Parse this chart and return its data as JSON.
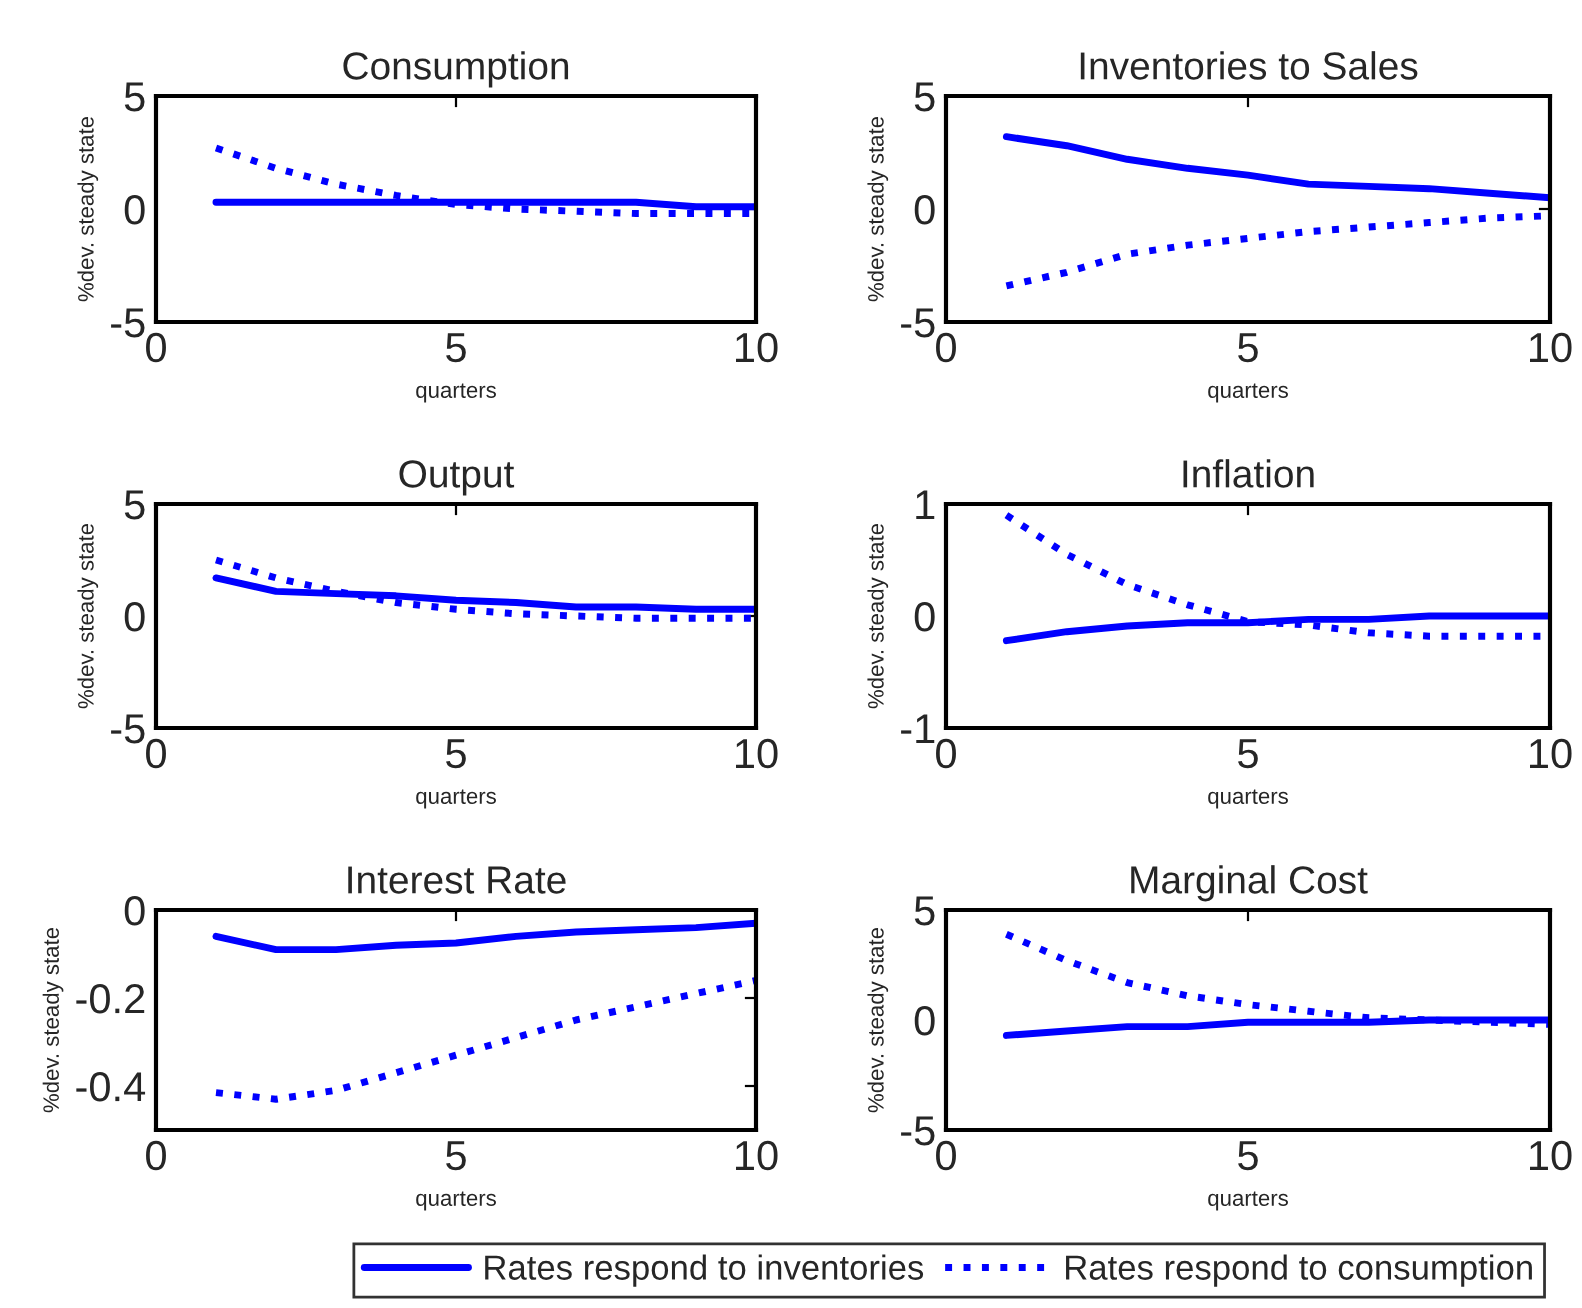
{
  "chart_data": [
    {
      "type": "line",
      "title": "Consumption",
      "xlabel": "quarters",
      "ylabel": "%dev. steady state",
      "xlim": [
        0,
        10
      ],
      "xticks": [
        0,
        5,
        10
      ],
      "ylim": [
        -5,
        5
      ],
      "yticks": [
        -5,
        0,
        5
      ],
      "grid": false,
      "x": [
        1,
        2,
        3,
        4,
        5,
        6,
        7,
        8,
        9,
        10
      ],
      "series": [
        {
          "color": "#0000ff",
          "line_style": "solid",
          "values": [
            0.3,
            0.3,
            0.3,
            0.3,
            0.3,
            0.3,
            0.3,
            0.3,
            0.1,
            0.1
          ]
        },
        {
          "color": "#0000ff",
          "line_style": "dotted",
          "values": [
            2.7,
            1.8,
            1.1,
            0.6,
            0.2,
            0.0,
            -0.1,
            -0.2,
            -0.2,
            -0.2
          ]
        }
      ]
    },
    {
      "type": "line",
      "title": "Inventories to Sales",
      "xlabel": "quarters",
      "ylabel": "%dev. steady state",
      "xlim": [
        0,
        10
      ],
      "xticks": [
        0,
        5,
        10
      ],
      "ylim": [
        -5,
        5
      ],
      "yticks": [
        -5,
        0,
        5
      ],
      "grid": false,
      "x": [
        1,
        2,
        3,
        4,
        5,
        6,
        7,
        8,
        9,
        10
      ],
      "series": [
        {
          "color": "#0000ff",
          "line_style": "solid",
          "values": [
            3.2,
            2.8,
            2.2,
            1.8,
            1.5,
            1.1,
            1.0,
            0.9,
            0.7,
            0.5
          ]
        },
        {
          "color": "#0000ff",
          "line_style": "dotted",
          "values": [
            -3.4,
            -2.8,
            -2.0,
            -1.6,
            -1.3,
            -1.0,
            -0.8,
            -0.6,
            -0.4,
            -0.3
          ]
        }
      ]
    },
    {
      "type": "line",
      "title": "Output",
      "xlabel": "quarters",
      "ylabel": "%dev. steady state",
      "xlim": [
        0,
        10
      ],
      "xticks": [
        0,
        5,
        10
      ],
      "ylim": [
        -5,
        5
      ],
      "yticks": [
        -5,
        0,
        5
      ],
      "grid": false,
      "x": [
        1,
        2,
        3,
        4,
        5,
        6,
        7,
        8,
        9,
        10
      ],
      "series": [
        {
          "color": "#0000ff",
          "line_style": "solid",
          "values": [
            1.7,
            1.1,
            1.0,
            0.9,
            0.7,
            0.6,
            0.4,
            0.4,
            0.3,
            0.3
          ]
        },
        {
          "color": "#0000ff",
          "line_style": "dotted",
          "values": [
            2.5,
            1.7,
            1.1,
            0.6,
            0.3,
            0.1,
            0.0,
            -0.1,
            -0.1,
            -0.1
          ]
        }
      ]
    },
    {
      "type": "line",
      "title": "Inflation",
      "xlabel": "quarters",
      "ylabel": "%dev. steady state",
      "xlim": [
        0,
        10
      ],
      "xticks": [
        0,
        5,
        10
      ],
      "ylim": [
        -1,
        1
      ],
      "yticks": [
        -1,
        0,
        1
      ],
      "grid": false,
      "x": [
        1,
        2,
        3,
        4,
        5,
        6,
        7,
        8,
        9,
        10
      ],
      "series": [
        {
          "color": "#0000ff",
          "line_style": "solid",
          "values": [
            -0.22,
            -0.14,
            -0.09,
            -0.06,
            -0.06,
            -0.03,
            -0.03,
            0.0,
            0.0,
            0.0
          ]
        },
        {
          "color": "#0000ff",
          "line_style": "dotted",
          "values": [
            0.9,
            0.55,
            0.28,
            0.1,
            -0.05,
            -0.08,
            -0.15,
            -0.18,
            -0.18,
            -0.18
          ]
        }
      ]
    },
    {
      "type": "line",
      "title": "Interest Rate",
      "xlabel": "quarters",
      "ylabel": "%dev. steady state",
      "xlim": [
        0,
        10
      ],
      "xticks": [
        0,
        5,
        10
      ],
      "ylim": [
        -0.5,
        0
      ],
      "yticks": [
        {
          "value": -0.4,
          "label": "-0.4"
        },
        {
          "value": -0.2,
          "label": "-0.2"
        },
        0
      ],
      "grid": false,
      "x": [
        1,
        2,
        3,
        4,
        5,
        6,
        7,
        8,
        9,
        10
      ],
      "series": [
        {
          "color": "#0000ff",
          "line_style": "solid",
          "values": [
            -0.06,
            -0.09,
            -0.09,
            -0.08,
            -0.075,
            -0.06,
            -0.05,
            -0.045,
            -0.04,
            -0.03
          ]
        },
        {
          "color": "#0000ff",
          "line_style": "dotted",
          "values": [
            -0.415,
            -0.43,
            -0.41,
            -0.37,
            -0.33,
            -0.29,
            -0.25,
            -0.22,
            -0.19,
            -0.16
          ]
        }
      ]
    },
    {
      "type": "line",
      "title": "Marginal Cost",
      "xlabel": "quarters",
      "ylabel": "%dev. steady state",
      "xlim": [
        0,
        10
      ],
      "xticks": [
        0,
        5,
        10
      ],
      "ylim": [
        -5,
        5
      ],
      "yticks": [
        -5,
        0,
        5
      ],
      "grid": false,
      "legend": "bottom",
      "x": [
        1,
        2,
        3,
        4,
        5,
        6,
        7,
        8,
        9,
        10
      ],
      "series": [
        {
          "name": "Rates respond to inventories",
          "color": "#0000ff",
          "line_style": "solid",
          "values": [
            -0.7,
            -0.5,
            -0.3,
            -0.3,
            -0.1,
            -0.1,
            -0.1,
            0,
            0,
            0
          ]
        },
        {
          "name": "Rates respond to consumption",
          "color": "#0000ff",
          "line_style": "dotted",
          "values": [
            3.9,
            2.7,
            1.7,
            1.1,
            0.7,
            0.4,
            0.1,
            0,
            -0.1,
            -0.2
          ]
        }
      ]
    }
  ]
}
